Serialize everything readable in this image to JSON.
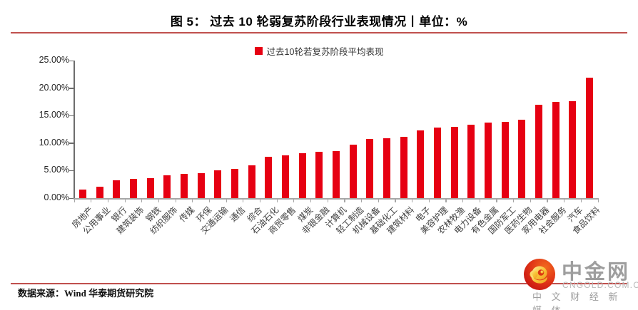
{
  "header": {
    "title": "图 5：  过去 10 轮弱复苏阶段行业表现情况丨单位：%"
  },
  "chart_data": {
    "type": "bar",
    "title": "过去10轮弱复苏阶段行业表现情况",
    "unit": "%",
    "categories": [
      "房地产",
      "公用事业",
      "银行",
      "建筑装饰",
      "钢铁",
      "纺织服饰",
      "传媒",
      "环保",
      "交通运输",
      "通信",
      "综合",
      "石油石化",
      "商贸零售",
      "煤炭",
      "非银金融",
      "计算机",
      "轻工制造",
      "机械设备",
      "基础化工",
      "建筑材料",
      "电子",
      "美容护理",
      "农林牧渔",
      "电力设备",
      "有色金属",
      "国防军工",
      "医药生物",
      "家用电器",
      "社会服务",
      "汽车",
      "食品饮料"
    ],
    "series": [
      {
        "name": "过去10轮若复苏阶段平均表现",
        "values": [
          1.5,
          2.1,
          3.3,
          3.5,
          3.6,
          4.2,
          4.4,
          4.5,
          5.0,
          5.3,
          5.9,
          7.5,
          7.8,
          8.2,
          8.4,
          8.5,
          9.7,
          10.8,
          10.9,
          11.1,
          12.3,
          12.8,
          12.9,
          13.3,
          13.7,
          13.9,
          14.2,
          17.0,
          17.5,
          17.6,
          21.9
        ]
      }
    ],
    "ylim": [
      0,
      25
    ],
    "yticks": [
      "25.00%",
      "20.00%",
      "15.00%",
      "10.00%",
      "5.00%",
      "0.00%"
    ],
    "grid": false,
    "legend_position": "top",
    "bar_color": "#e60012"
  },
  "footer": {
    "source": "数据来源：Wind 华泰期货研究院"
  },
  "logo": {
    "icon": "cngold-cloud-icon",
    "name": "中金网",
    "domain": "CNGOLD.COM.CN",
    "tagline": "中 文 财 经 新 媒 体"
  },
  "colors": {
    "bar": "#e60012",
    "accent_rule": "#c0504d",
    "axis_gray": "#a6a6a6"
  }
}
